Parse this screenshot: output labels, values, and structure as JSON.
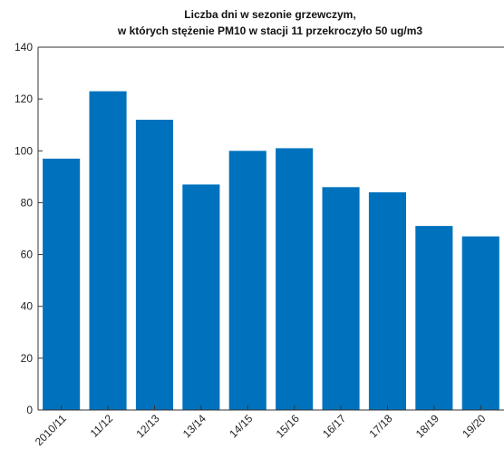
{
  "chart_data": {
    "type": "bar",
    "title": "Liczba dni w sezonie grzewczym,",
    "subtitle": "w których stężenie PM10 w stacji 11 przekroczyło 50 ug/m3",
    "xlabel": "",
    "ylabel": "",
    "categories": [
      "2010/11",
      "11/12",
      "12/13",
      "13/14",
      "14/15",
      "15/16",
      "16/17",
      "17/18",
      "18/19",
      "19/20"
    ],
    "values": [
      97,
      123,
      112,
      87,
      100,
      101,
      86,
      84,
      71,
      67
    ],
    "ylim": [
      0,
      140
    ],
    "yticks": [
      "0",
      "20",
      "40",
      "60",
      "80",
      "100",
      "120",
      "140"
    ],
    "grid": false,
    "legend": "none",
    "bar_color": "#0072BD"
  }
}
